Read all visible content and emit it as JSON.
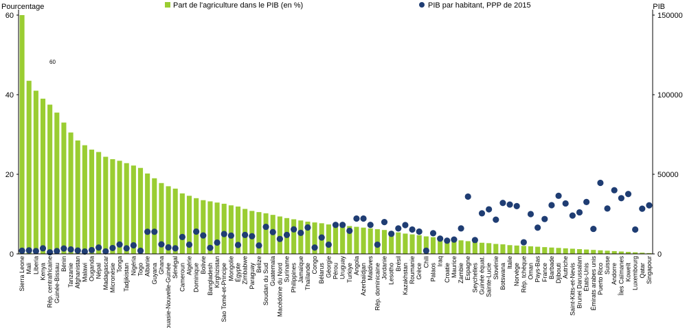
{
  "chart_data": {
    "type": "bar",
    "left_axis_title": "Pourcentage",
    "right_axis_title": "PIB",
    "left_ylim": [
      0,
      60
    ],
    "left_ticks": [
      "0",
      "20",
      "40",
      "60"
    ],
    "right_ylim": [
      0,
      150000
    ],
    "right_ticks": [
      "0",
      "50000",
      "100000",
      "150000"
    ],
    "legend_position": "top",
    "grid": false,
    "annotation": "60",
    "colors": {
      "bar": "#9ACD32",
      "dot": "#1F3D73",
      "axis": "#000000"
    },
    "series": [
      {
        "name": "Part de l'agriculture dans le PIB (en %)",
        "type": "bar",
        "axis": "left"
      },
      {
        "name": "PIB par habitant, PPP de 2015",
        "type": "scatter",
        "axis": "right"
      }
    ],
    "categories": [
      "Sierra Leone",
      "Mali",
      "Liberia",
      "Kenya",
      "Rép. centrafricaine",
      "Guinée-Bissau",
      "Bénin",
      "Tanzanie",
      "Afghanistan",
      "Malawi",
      "Ouganda",
      "Népal",
      "Madagascar",
      "Micronésie",
      "Tonga",
      "Tadjikistan",
      "Nigéria",
      "Togo",
      "Albanie",
      "Guyana",
      "Ghana",
      "Papouasie-Nouvelle-Guinée",
      "Sénégal",
      "Cameroun",
      "Algérie",
      "Dominique",
      "Bolivie",
      "Bangladesh",
      "Kirghizistan",
      "Sao Tomé-et-Principe",
      "Mongolie",
      "Égypte",
      "Zimbabwe",
      "Paraguay",
      "Belize",
      "Soudan du Sud",
      "Guatemala",
      "Macédoine du Nord",
      "Suriname",
      "Philippines",
      "Jamaïque",
      "Thaïlande",
      "Congo",
      "Bélarus",
      "Géorgie",
      "Pérou",
      "Uruguay",
      "Turkiye",
      "Angola",
      "Azerbaïdjan",
      "Maldives",
      "Rép. dominicaine",
      "Jordanie",
      "Lesotho",
      "Brésil",
      "Kazakhstan",
      "Roumanie",
      "Grèce",
      "Chili",
      "Palaos",
      "Iraq",
      "Croatie",
      "Maurice",
      "Zambie",
      "Espagne",
      "Seychelles",
      "Guinée équat.",
      "Sainte-Lucie",
      "Slovénie",
      "Botswana",
      "Italie",
      "Norvège",
      "Rép. tchèque",
      "Oman",
      "Pays-Bas",
      "France",
      "Barbade",
      "Djibouti",
      "Autriche",
      "Saint-Kitts-et-Nevis",
      "Brunei Darussalam",
      "États-Unis",
      "Émirats arabes unis",
      "Puerto Rico",
      "Suisse",
      "Andorre",
      "Îles Caïmanes",
      "Koweït",
      "Luxembourg",
      "Qatar",
      "Singapour"
    ],
    "bar_values": [
      60,
      43.5,
      41,
      39,
      37.5,
      35.5,
      33,
      30.5,
      28.5,
      27.3,
      26.2,
      25.6,
      24.4,
      23.8,
      23.4,
      22.8,
      22.2,
      21.6,
      20.2,
      19,
      17.8,
      17,
      16.4,
      15.2,
      14.6,
      14,
      13.5,
      13.2,
      12.9,
      12.6,
      12.2,
      11.9,
      11.3,
      10.8,
      10.5,
      10.2,
      9.8,
      9.4,
      9,
      8.7,
      8.4,
      8.1,
      7.9,
      7.7,
      7.4,
      7.2,
      7.1,
      7,
      6.8,
      6.6,
      6.4,
      6.2,
      6,
      5.7,
      5.4,
      5.1,
      4.9,
      4.7,
      4.4,
      4.2,
      4,
      3.8,
      3.6,
      3.4,
      3.2,
      3,
      2.8,
      2.7,
      2.5,
      2.4,
      2.2,
      2.1,
      2,
      1.9,
      1.8,
      1.7,
      1.6,
      1.5,
      1.4,
      1.3,
      1.2,
      1.1,
      1,
      0.9,
      0.8,
      0.7,
      0.6,
      0.5,
      0.4,
      0.3,
      0.2
    ],
    "dot_values": [
      2000,
      2200,
      1800,
      3500,
      1000,
      1800,
      3400,
      2800,
      2100,
      1500,
      2400,
      4000,
      1600,
      3700,
      5900,
      3500,
      5400,
      2000,
      13900,
      13900,
      6000,
      4100,
      3500,
      10600,
      5800,
      14000,
      11600,
      3800,
      7100,
      12500,
      11500,
      5600,
      11900,
      11100,
      5300,
      17000,
      13700,
      9400,
      11900,
      15400,
      13200,
      16600,
      4000,
      10300,
      5800,
      18200,
      18200,
      14500,
      22200,
      22200,
      18200,
      5800,
      20000,
      12600,
      16000,
      18100,
      15300,
      14000,
      2000,
      13000,
      9600,
      8300,
      9000,
      16000,
      36000,
      8700,
      25500,
      28000,
      21500,
      32000,
      31000,
      30000,
      7300,
      25000,
      16500,
      21900,
      30600,
      36500,
      31700,
      24100,
      26100,
      32600,
      15700,
      44600,
      28500,
      40000,
      35000,
      37600,
      15300,
      28400,
      30500
    ],
    "dot_order_note": ""
  }
}
